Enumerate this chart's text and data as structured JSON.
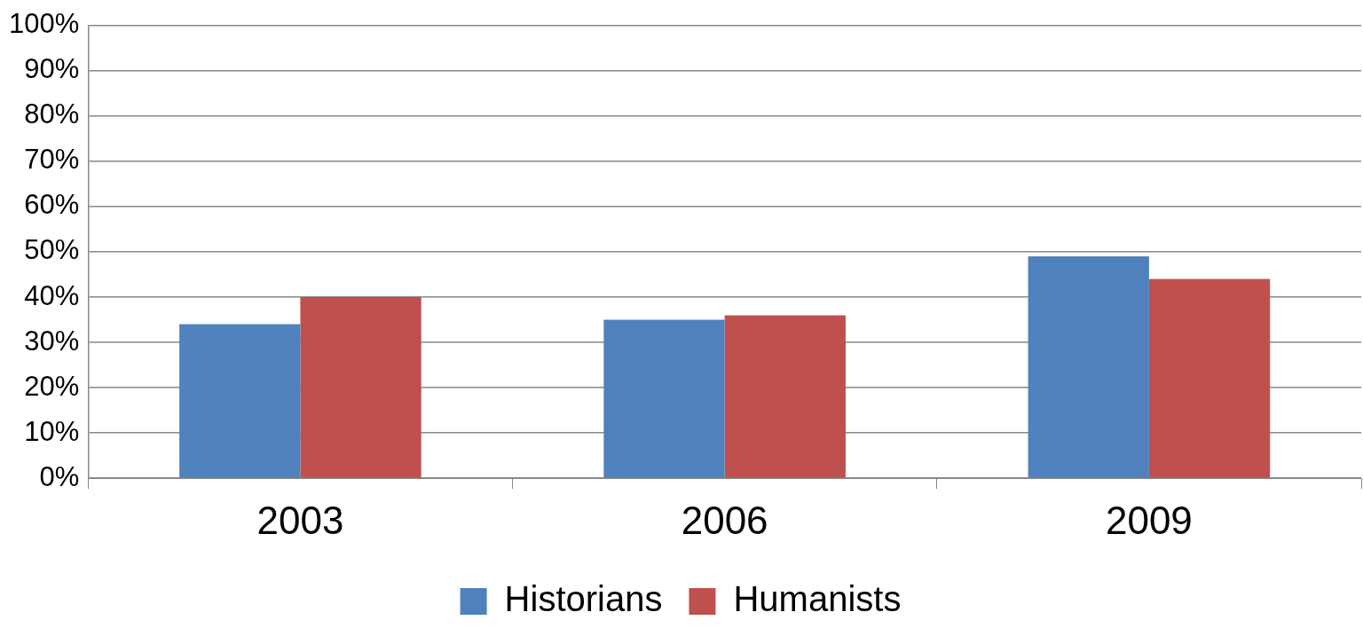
{
  "chart_data": {
    "type": "bar",
    "categories": [
      "2003",
      "2006",
      "2009"
    ],
    "series": [
      {
        "name": "Historians",
        "color": "#4f81bd",
        "values": [
          34,
          35,
          49
        ]
      },
      {
        "name": "Humanists",
        "color": "#c0504d",
        "values": [
          40,
          36,
          44
        ]
      }
    ],
    "ylim": [
      0,
      100
    ],
    "yticks": [
      {
        "value": 0,
        "label": "0%"
      },
      {
        "value": 10,
        "label": "10%"
      },
      {
        "value": 20,
        "label": "20%"
      },
      {
        "value": 30,
        "label": "30%"
      },
      {
        "value": 40,
        "label": "40%"
      },
      {
        "value": 50,
        "label": "50%"
      },
      {
        "value": 60,
        "label": "60%"
      },
      {
        "value": 70,
        "label": "70%"
      },
      {
        "value": 80,
        "label": "80%"
      },
      {
        "value": 90,
        "label": "90%"
      },
      {
        "value": 100,
        "label": "100%"
      }
    ],
    "grid": "y",
    "legend": "bottom"
  }
}
